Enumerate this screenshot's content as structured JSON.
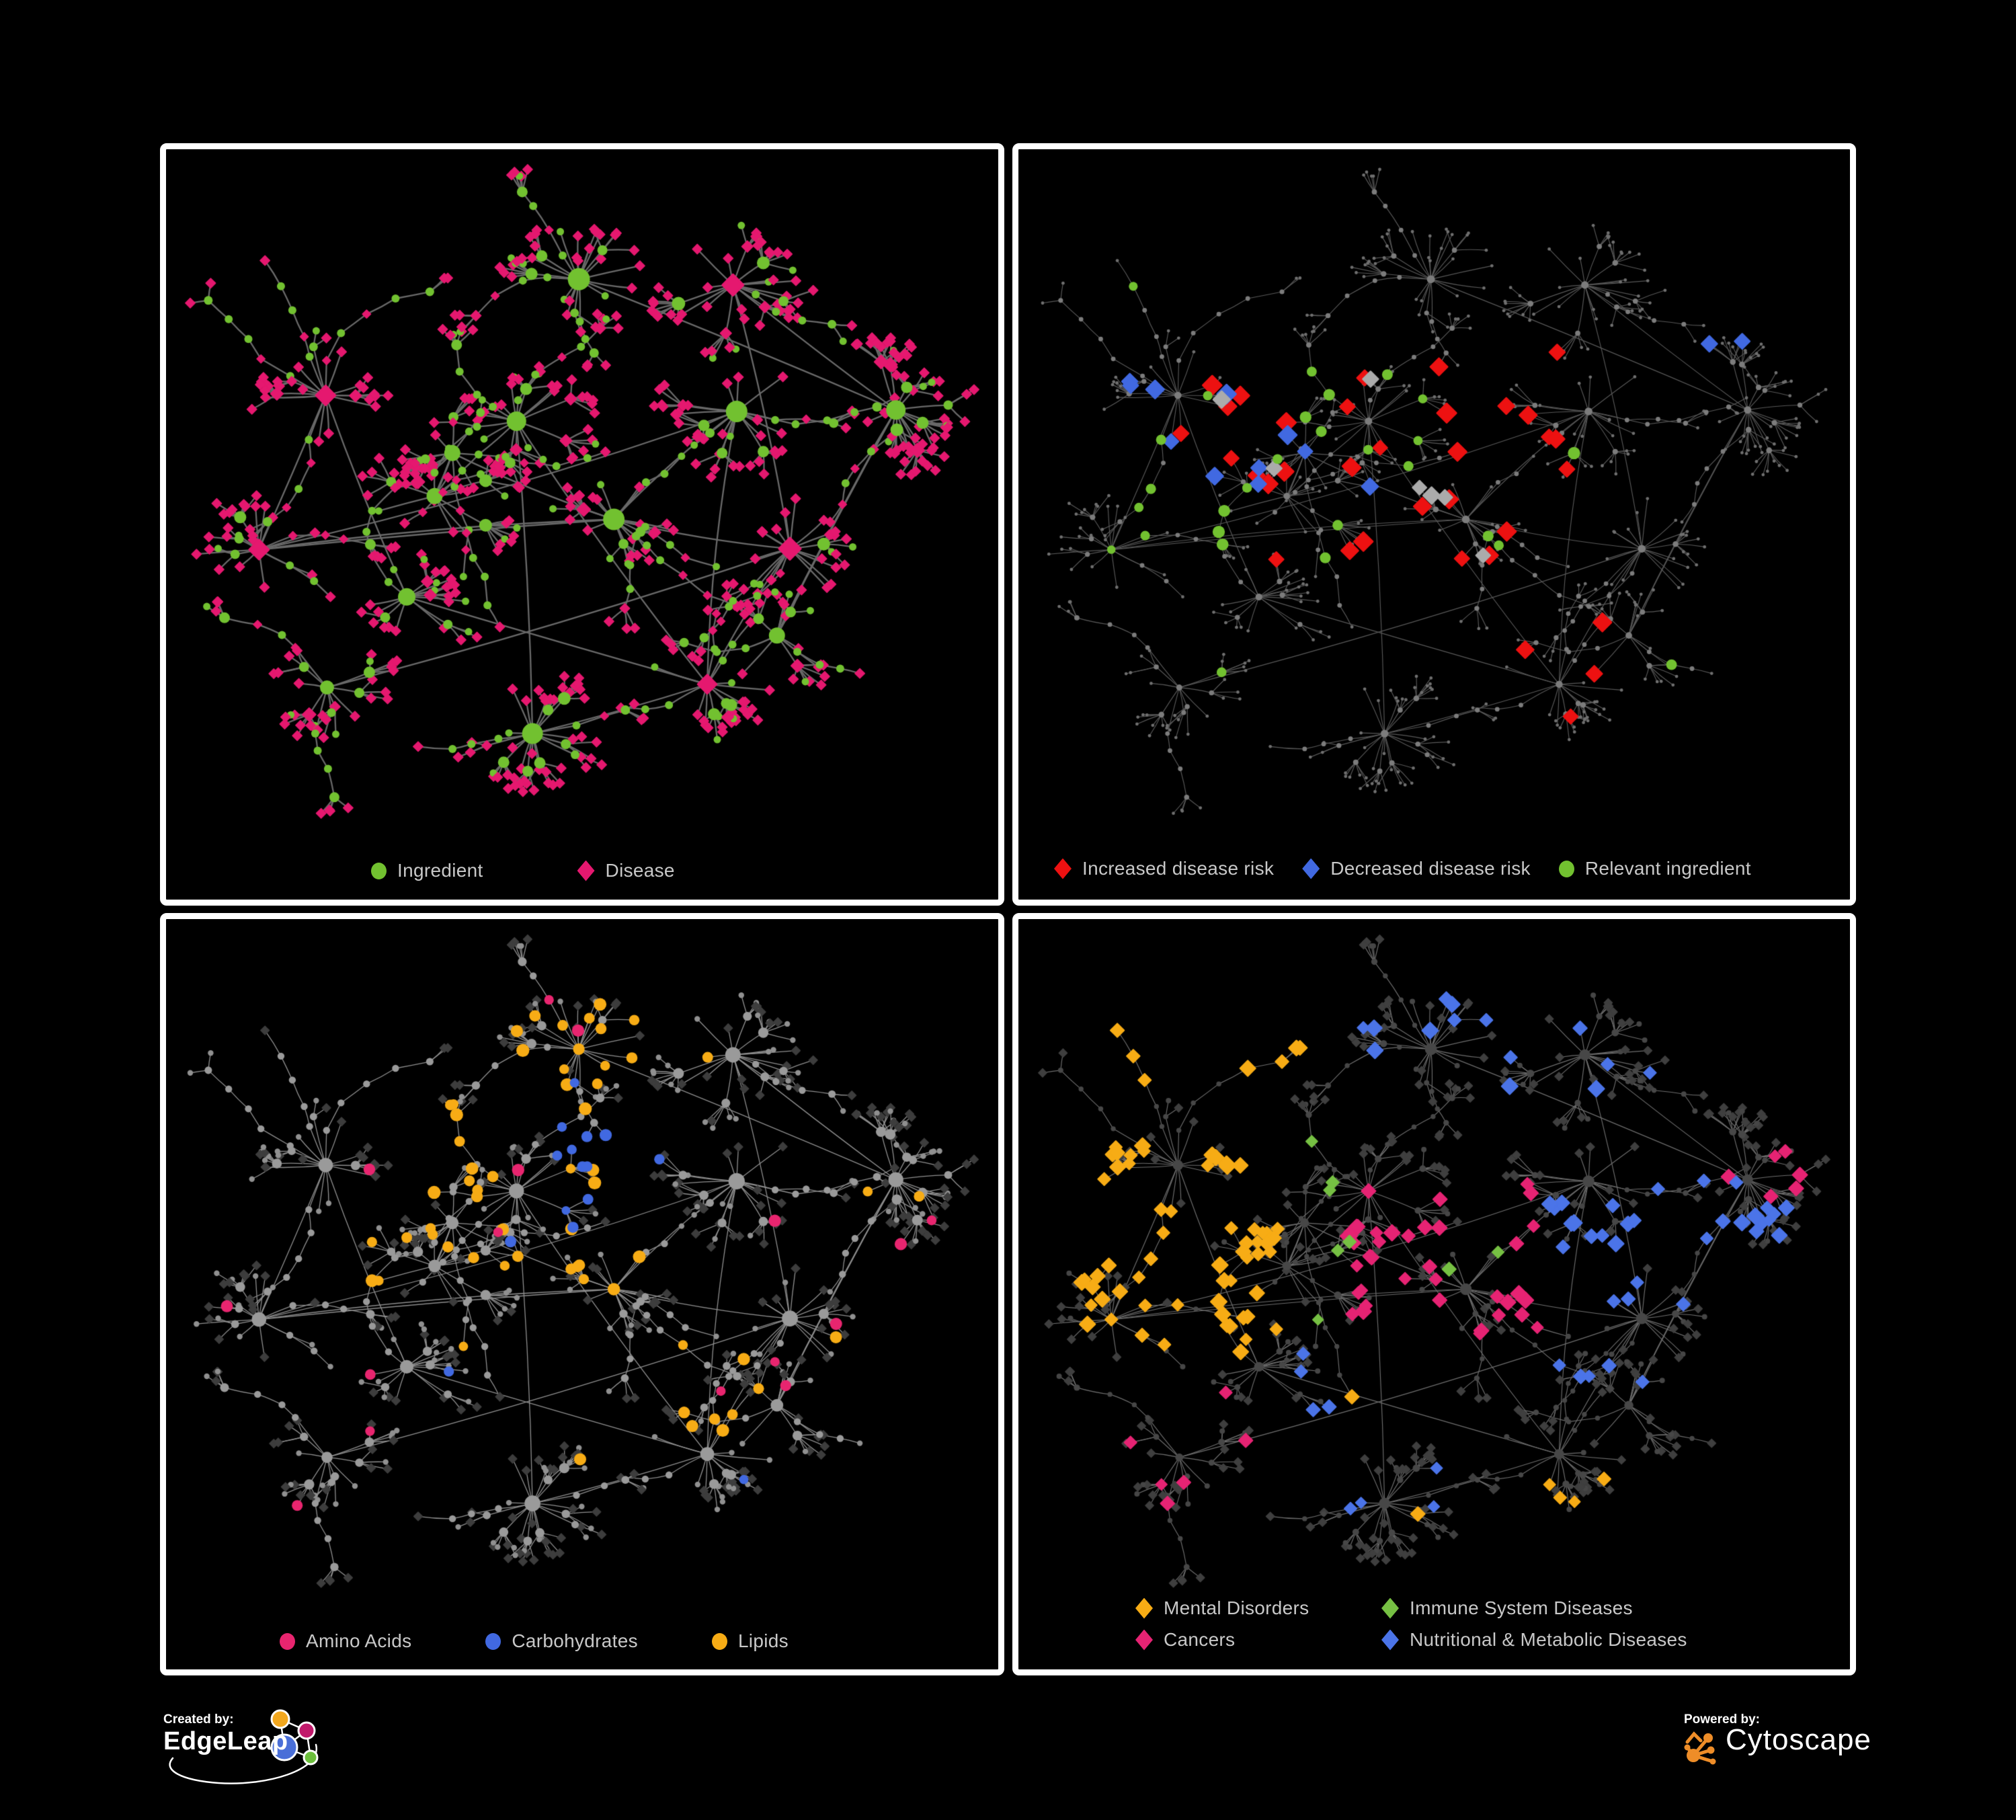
{
  "background": "#000000",
  "panel_border_color": "#FFFFFF",
  "legend_text_color": "#C8C8C8",
  "topology": {
    "seed": 20317,
    "hubs": 16,
    "child_min": 8,
    "child_var": 16,
    "extra_hub_edges": 6,
    "cross_links": 14
  },
  "panels": [
    {
      "name": "ingredient-disease-network",
      "legend": {
        "items": [
          {
            "label": "Ingredient",
            "shape": "circle",
            "color": "#72C130"
          },
          {
            "label": "Disease",
            "shape": "diamond",
            "color": "#E5186F"
          }
        ]
      },
      "network": {
        "edge": {
          "color": "#696969",
          "width": 2.3
        },
        "internal": {
          "shape": "circle",
          "color": "#72C130",
          "r_base": 5,
          "r_deg": 0.5,
          "r_max": 17,
          "alt": {
            "prob": 0.22,
            "shape": "diamond",
            "color": "#E5186F"
          }
        },
        "leaf": {
          "shape": "diamond",
          "color": "#E5186F",
          "r": 7,
          "alt": {
            "prob": 0.15,
            "shape": "circle",
            "color": "#72C130",
            "r": 5.5
          }
        },
        "highlights": []
      }
    },
    {
      "name": "disease-risk-network",
      "legend": {
        "items": [
          {
            "label": "Increased disease risk",
            "shape": "diamond",
            "color": "#ED1111"
          },
          {
            "label": "Decreased disease risk",
            "shape": "diamond",
            "color": "#4169E1"
          },
          {
            "label": "Relevant ingredient",
            "shape": "circle",
            "color": "#72C130"
          }
        ]
      },
      "network": {
        "edge": {
          "color": "#585858",
          "width": 1.15
        },
        "internal": {
          "shape": "circle",
          "color": "#7C7C7C",
          "r_base": 3.2,
          "r_deg": 0.12,
          "r_max": 6
        },
        "leaf": {
          "shape": "circle",
          "color": "#6F6F6F",
          "r": 2.4
        },
        "highlights": [
          {
            "shape": "diamond",
            "color": "#ED1111",
            "r": 12,
            "count": 26,
            "target": "leaf",
            "region": [
              0.25,
              0.28,
              0.72,
              0.62
            ]
          },
          {
            "shape": "diamond",
            "color": "#ED1111",
            "r": 12,
            "count": 5,
            "target": "leaf",
            "region": [
              0.16,
              0.3,
              0.3,
              0.45
            ]
          },
          {
            "shape": "diamond",
            "color": "#ED1111",
            "r": 12,
            "count": 4,
            "target": "leaf",
            "region": [
              0.55,
              0.68,
              0.75,
              0.85
            ]
          },
          {
            "shape": "diamond",
            "color": "#4169E1",
            "r": 12,
            "count": 8,
            "target": "leaf",
            "region": [
              0.1,
              0.3,
              0.28,
              0.52
            ]
          },
          {
            "shape": "diamond",
            "color": "#4169E1",
            "r": 12,
            "count": 3,
            "target": "leaf",
            "region": [
              0.3,
              0.3,
              0.55,
              0.55
            ]
          },
          {
            "shape": "diamond",
            "color": "#4169E1",
            "r": 12,
            "count": 2,
            "target": "leaf",
            "region": [
              0.84,
              0.24,
              0.95,
              0.33
            ]
          },
          {
            "shape": "diamond",
            "color": "#ABABAB",
            "r": 11,
            "count": 8,
            "target": "leaf",
            "region": [
              0.12,
              0.28,
              0.7,
              0.6
            ]
          },
          {
            "shape": "circle",
            "color": "#72C130",
            "r": 8,
            "count": 24,
            "target": "internal",
            "region": [
              0.12,
              0.26,
              0.68,
              0.62
            ]
          },
          {
            "shape": "circle",
            "color": "#72C130",
            "r": 7,
            "count": 4,
            "target": "internal",
            "region": [
              0.05,
              0.12,
              0.95,
              0.9
            ]
          }
        ]
      }
    },
    {
      "name": "nutrient-class-network",
      "legend": {
        "items": [
          {
            "label": "Amino Acids",
            "shape": "circle",
            "color": "#E8256F"
          },
          {
            "label": "Carbohydrates",
            "shape": "circle",
            "color": "#4169E1"
          },
          {
            "label": "Lipids",
            "shape": "circle",
            "color": "#F7AC15"
          }
        ]
      },
      "network": {
        "edge": {
          "color": "#8F8F8F",
          "width": 1.3
        },
        "internal": {
          "shape": "circle",
          "color": "#9A9A9A",
          "r_base": 4.5,
          "r_deg": 0.35,
          "r_max": 13
        },
        "leaf": {
          "shape": "diamond",
          "color": "#3D3D3D",
          "r": 6.2,
          "alt": {
            "prob": 0.38,
            "shape": "circle",
            "color": "#909090",
            "r": 4.2
          }
        },
        "highlights": [
          {
            "shape": "circle",
            "color": "#F7AC15",
            "r": 8.5,
            "count": 34,
            "target": "any",
            "region": [
              0.22,
              0.18,
              0.58,
              0.55
            ]
          },
          {
            "shape": "circle",
            "color": "#F7AC15",
            "r": 8.5,
            "count": 10,
            "target": "any",
            "region": [
              0.4,
              0.1,
              0.6,
              0.22
            ]
          },
          {
            "shape": "circle",
            "color": "#F7AC15",
            "r": 8.5,
            "count": 8,
            "target": "any",
            "region": [
              0.55,
              0.6,
              0.75,
              0.82
            ]
          },
          {
            "shape": "circle",
            "color": "#F7AC15",
            "r": 8,
            "count": 8,
            "target": "any",
            "region": [
              0.05,
              0.05,
              0.95,
              0.9
            ]
          },
          {
            "shape": "circle",
            "color": "#4169E1",
            "r": 8,
            "count": 10,
            "target": "any",
            "region": [
              0.45,
              0.28,
              0.6,
              0.45
            ]
          },
          {
            "shape": "circle",
            "color": "#4169E1",
            "r": 7.5,
            "count": 5,
            "target": "any",
            "region": [
              0.05,
              0.08,
              0.95,
              0.9
            ]
          },
          {
            "shape": "circle",
            "color": "#E8256F",
            "r": 8,
            "count": 16,
            "target": "any",
            "region": [
              0.03,
              0.05,
              0.97,
              0.92
            ]
          }
        ]
      }
    },
    {
      "name": "disease-class-network",
      "legend": {
        "items": [
          {
            "label": "Mental Disorders",
            "shape": "diamond",
            "color": "#F7AC15"
          },
          {
            "label": "Immune System Diseases",
            "shape": "diamond",
            "color": "#76C043"
          },
          {
            "label": "Cancers",
            "shape": "diamond",
            "color": "#E62373"
          },
          {
            "label": "Nutritional & Metabolic Diseases",
            "shape": "diamond",
            "color": "#4B74E8"
          }
        ]
      },
      "network": {
        "edge": {
          "color": "#6E6E6E",
          "width": 1.15
        },
        "internal": {
          "shape": "circle",
          "color": "#474747",
          "r_base": 3.2,
          "r_deg": 0.25,
          "r_max": 9
        },
        "leaf": {
          "shape": "diamond",
          "color": "#3F3F3F",
          "r": 6,
          "alt": {
            "prob": 0.22,
            "shape": "circle",
            "color": "#464646",
            "r": 4
          }
        },
        "highlights": [
          {
            "shape": "diamond",
            "color": "#F7AC15",
            "r": 10,
            "count": 60,
            "target": "any",
            "region": [
              0.04,
              0.3,
              0.3,
              0.66
            ]
          },
          {
            "shape": "diamond",
            "color": "#F7AC15",
            "r": 10,
            "count": 10,
            "target": "any",
            "region": [
              0.08,
              0.06,
              0.35,
              0.22
            ]
          },
          {
            "shape": "diamond",
            "color": "#F7AC15",
            "r": 9,
            "count": 6,
            "target": "any",
            "region": [
              0.35,
              0.7,
              0.75,
              0.95
            ]
          },
          {
            "shape": "diamond",
            "color": "#E62373",
            "r": 10,
            "count": 40,
            "target": "any",
            "region": [
              0.38,
              0.38,
              0.64,
              0.68
            ]
          },
          {
            "shape": "diamond",
            "color": "#E62373",
            "r": 10,
            "count": 6,
            "target": "any",
            "region": [
              0.86,
              0.28,
              0.98,
              0.4
            ]
          },
          {
            "shape": "diamond",
            "color": "#E62373",
            "r": 9,
            "count": 6,
            "target": "any",
            "region": [
              0.03,
              0.7,
              0.3,
              0.95
            ]
          },
          {
            "shape": "diamond",
            "color": "#4B74E8",
            "r": 10,
            "count": 35,
            "target": "any",
            "region": [
              0.64,
              0.36,
              0.95,
              0.7
            ]
          },
          {
            "shape": "diamond",
            "color": "#4B74E8",
            "r": 10,
            "count": 14,
            "target": "any",
            "region": [
              0.28,
              0.02,
              0.85,
              0.25
            ]
          },
          {
            "shape": "diamond",
            "color": "#4B74E8",
            "r": 9,
            "count": 8,
            "target": "any",
            "region": [
              0.25,
              0.6,
              0.55,
              0.92
            ]
          },
          {
            "shape": "diamond",
            "color": "#76C043",
            "r": 9,
            "count": 8,
            "target": "any",
            "region": [
              0.3,
              0.18,
              0.75,
              0.6
            ]
          }
        ]
      }
    }
  ],
  "footer": {
    "created_by_label": "Created by:",
    "created_by_brand": "EdgeLeap",
    "powered_by_label": "Powered by:",
    "powered_by_brand": "Cytoscape",
    "edgeleap_colors": {
      "orange": "#F2A71E",
      "magenta": "#C1196B",
      "blue": "#4A6FD8",
      "green": "#6CBF3C"
    },
    "cytoscape_color": "#EE8D28"
  }
}
